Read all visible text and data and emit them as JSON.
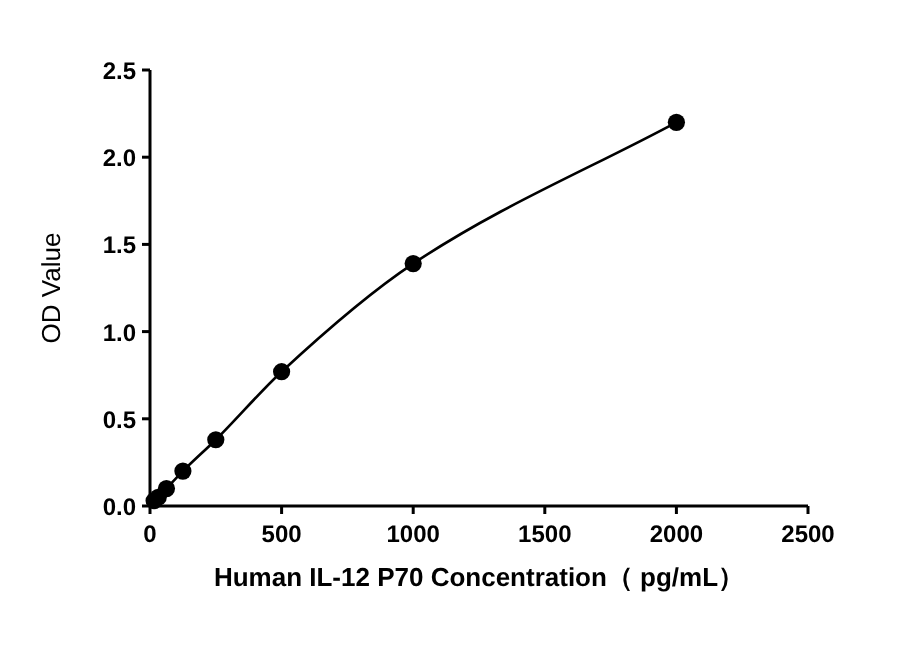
{
  "chart_data": {
    "type": "line",
    "xlabel": "Human IL-12 P70 Concentration（ pg/mL）",
    "ylabel": "OD Value",
    "x": [
      15.6,
      31.25,
      62.5,
      125,
      250,
      500,
      1000,
      2000
    ],
    "series": [
      {
        "color": "#000000",
        "values": [
          0.03,
          0.05,
          0.1,
          0.2,
          0.38,
          0.77,
          1.39,
          2.2
        ]
      }
    ],
    "marker": "circle",
    "line_style": "solid",
    "xlim": [
      0,
      2500
    ],
    "xticks": [
      0,
      500,
      1000,
      1500,
      2000,
      2500
    ],
    "ylim": [
      0,
      2.5
    ],
    "yticks": [
      {
        "value": 0,
        "label": "0.0"
      },
      {
        "value": 0.5,
        "label": "0.5"
      },
      {
        "value": 1,
        "label": "1.0"
      },
      {
        "value": 1.5,
        "label": "1.5"
      },
      {
        "value": 2,
        "label": "2.0"
      },
      {
        "value": 2.5,
        "label": "2.5"
      }
    ],
    "grid": false
  }
}
